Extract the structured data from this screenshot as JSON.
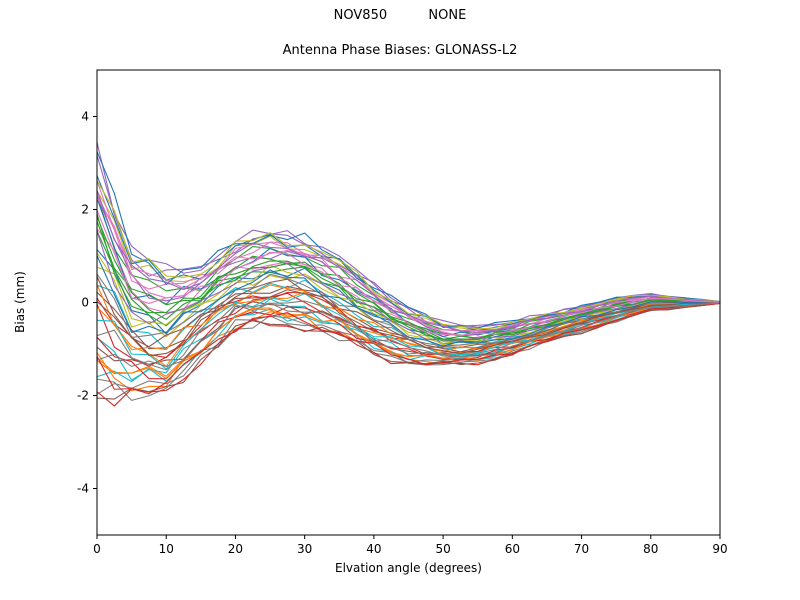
{
  "figure": {
    "suptitle": "NOV850          NONE",
    "title": "Antenna Phase Biases: GLONASS-L2",
    "xlabel": "Elvation angle (degrees)",
    "ylabel": "Bias (mm)"
  },
  "chart_data": {
    "type": "line",
    "title": "Antenna Phase Biases: GLONASS-L2",
    "suptitle": "NOV850          NONE",
    "xlabel": "Elvation angle (degrees)",
    "ylabel": "Bias (mm)",
    "xlim": [
      0,
      90
    ],
    "ylim": [
      -5,
      5
    ],
    "xticks": [
      0,
      10,
      20,
      30,
      40,
      50,
      60,
      70,
      80,
      90
    ],
    "yticks": [
      -4,
      -2,
      0,
      2,
      4
    ],
    "grid": false,
    "legend": "none",
    "description": "Bundle of antenna phase bias curves vs elevation angle; all curves share a common shape (dip near 5-10 deg, bump near 25-30 deg, dip near 50 deg) and converge to 0 mm at 90 deg. Each series is center[x] + t * spread[x].",
    "x_knots": [
      0,
      5,
      10,
      15,
      20,
      25,
      30,
      35,
      40,
      45,
      50,
      55,
      60,
      65,
      70,
      75,
      80,
      85,
      90
    ],
    "center": [
      0.75,
      -0.45,
      -0.65,
      -0.2,
      0.35,
      0.55,
      0.45,
      0.1,
      -0.35,
      -0.7,
      -0.9,
      -0.9,
      -0.75,
      -0.55,
      -0.35,
      -0.15,
      0.0,
      0.0,
      0.0
    ],
    "spread": [
      2.6,
      1.55,
      1.35,
      1.0,
      0.95,
      1.0,
      0.95,
      0.85,
      0.75,
      0.6,
      0.45,
      0.4,
      0.35,
      0.3,
      0.28,
      0.25,
      0.18,
      0.1,
      0.02
    ],
    "colors": [
      "#1f77b4",
      "#ff7f0e",
      "#2ca02c",
      "#d62728",
      "#9467bd",
      "#8c564b",
      "#e377c2",
      "#7f7f7f",
      "#bcbd22",
      "#17becf"
    ],
    "series_t": [
      0.15,
      -0.83,
      0.62,
      -0.32,
      0.91,
      -0.57,
      0.36,
      -0.94,
      0.79,
      -0.11,
      0.49,
      -0.7,
      0.23,
      -0.45,
      0.98,
      -0.21,
      0.68,
      -0.89,
      0.06,
      -0.62,
      0.85,
      -0.38,
      0.3,
      -1.0,
      0.55,
      -0.15,
      0.74,
      -0.51,
      0.11,
      -0.77,
      0.94,
      -0.26,
      0.41,
      -0.66,
      0.19,
      -0.98,
      0.6,
      -0.06,
      0.88,
      -0.42,
      0.02,
      -0.72,
      0.33,
      -0.87,
      0.7,
      -0.3,
      0.45,
      -0.6
    ]
  },
  "axes": {
    "xtick_labels": [
      "0",
      "10",
      "20",
      "30",
      "40",
      "50",
      "60",
      "70",
      "80",
      "90"
    ],
    "ytick_labels": [
      "-4",
      "-2",
      "0",
      "2",
      "4"
    ]
  }
}
